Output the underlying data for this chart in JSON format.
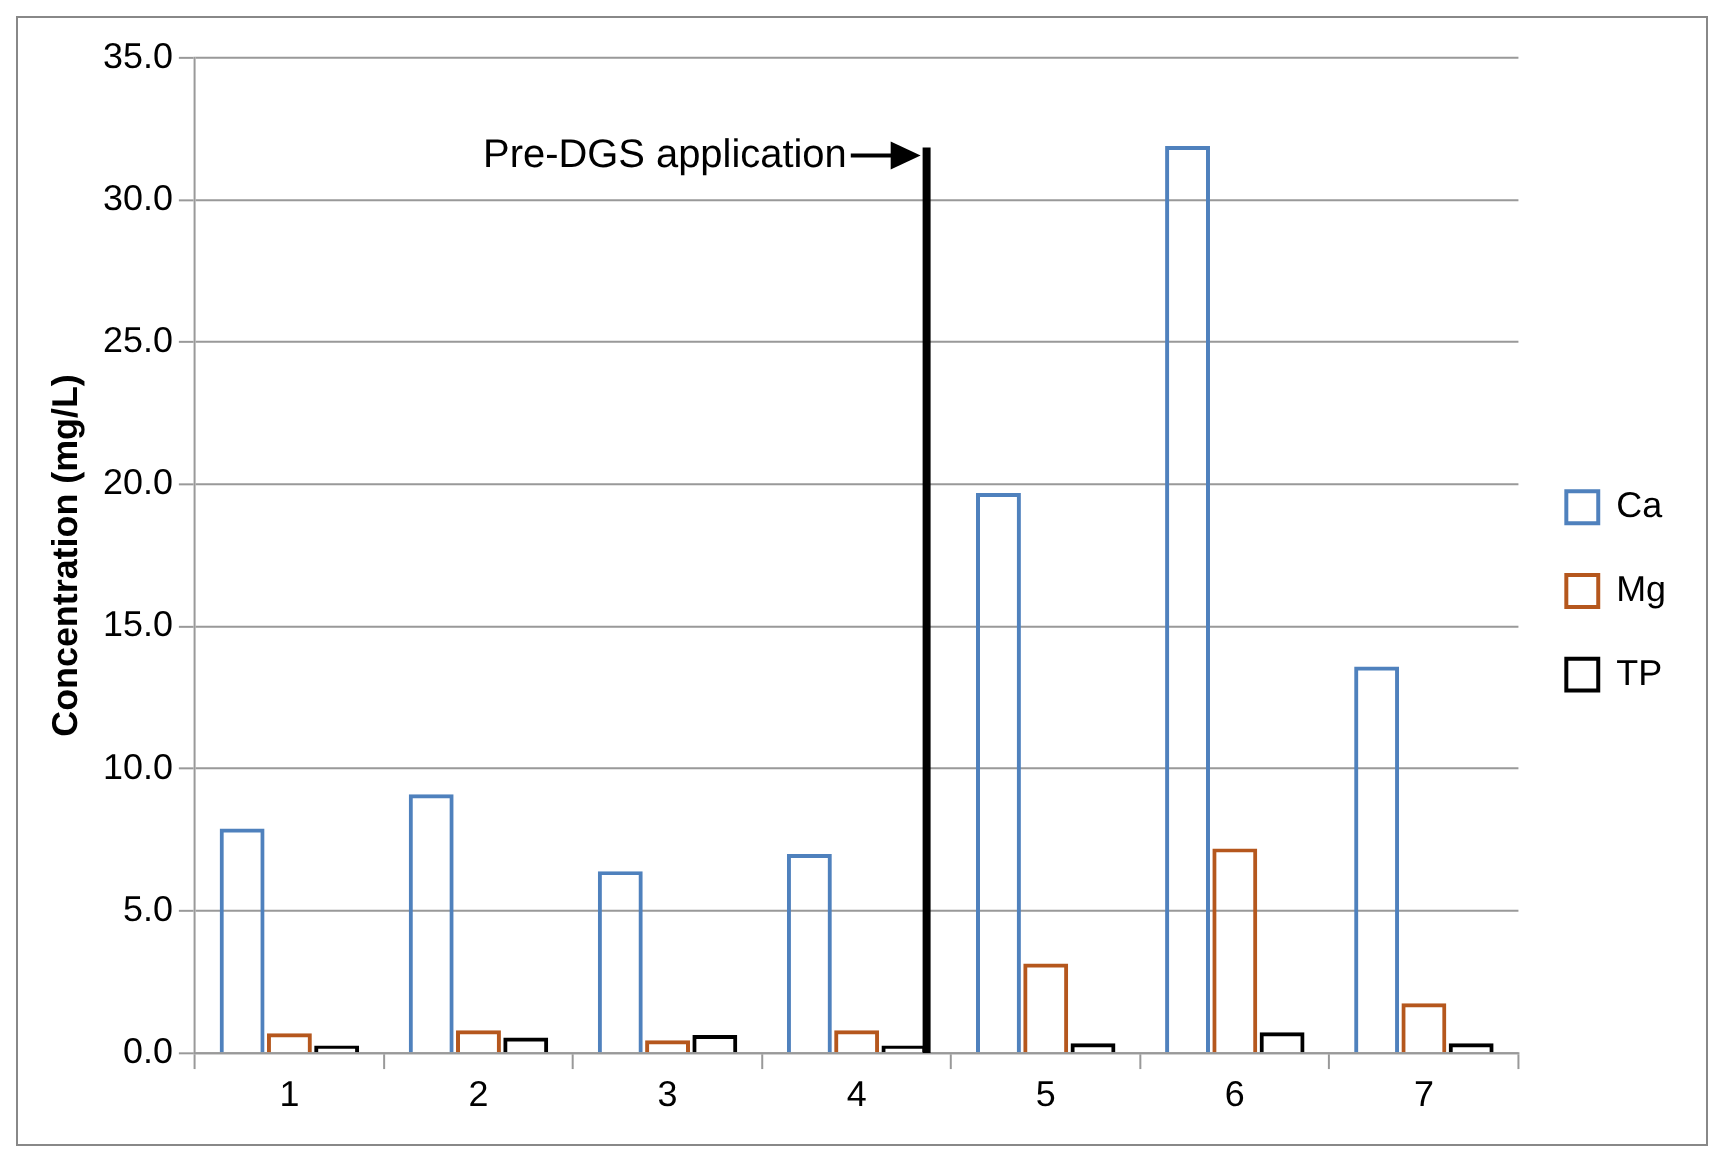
{
  "chart_data": {
    "type": "bar",
    "ylabel": "Concentration (mg/L)",
    "categories": [
      "1",
      "2",
      "3",
      "4",
      "5",
      "6",
      "7"
    ],
    "series": [
      {
        "name": "Ca",
        "color": "#4f81bd",
        "values": [
          7.9,
          9.1,
          6.4,
          7.0,
          19.7,
          31.9,
          13.6
        ]
      },
      {
        "name": "Mg",
        "color": "#b5571d",
        "values": [
          0.7,
          0.8,
          0.45,
          0.8,
          3.15,
          7.2,
          1.75
        ]
      },
      {
        "name": "TP",
        "color": "#000000",
        "values": [
          0.27,
          0.55,
          0.64,
          0.27,
          0.35,
          0.73,
          0.35
        ]
      }
    ],
    "ylim": [
      0,
      35
    ],
    "yticks": [
      {
        "value": 0,
        "label": "0.0"
      },
      {
        "value": 5,
        "label": "5.0"
      },
      {
        "value": 10,
        "label": "10.0"
      },
      {
        "value": 15,
        "label": "15.0"
      },
      {
        "value": 20,
        "label": "20.0"
      },
      {
        "value": 25,
        "label": "25.0"
      },
      {
        "value": 30,
        "label": "30.0"
      },
      {
        "value": 35,
        "label": "35.0"
      }
    ],
    "ref_lines": [
      {
        "axis": "x",
        "value": "4",
        "label": "Pre-DGS application",
        "color": "#000000"
      }
    ],
    "grid": "y",
    "legend": "right"
  }
}
